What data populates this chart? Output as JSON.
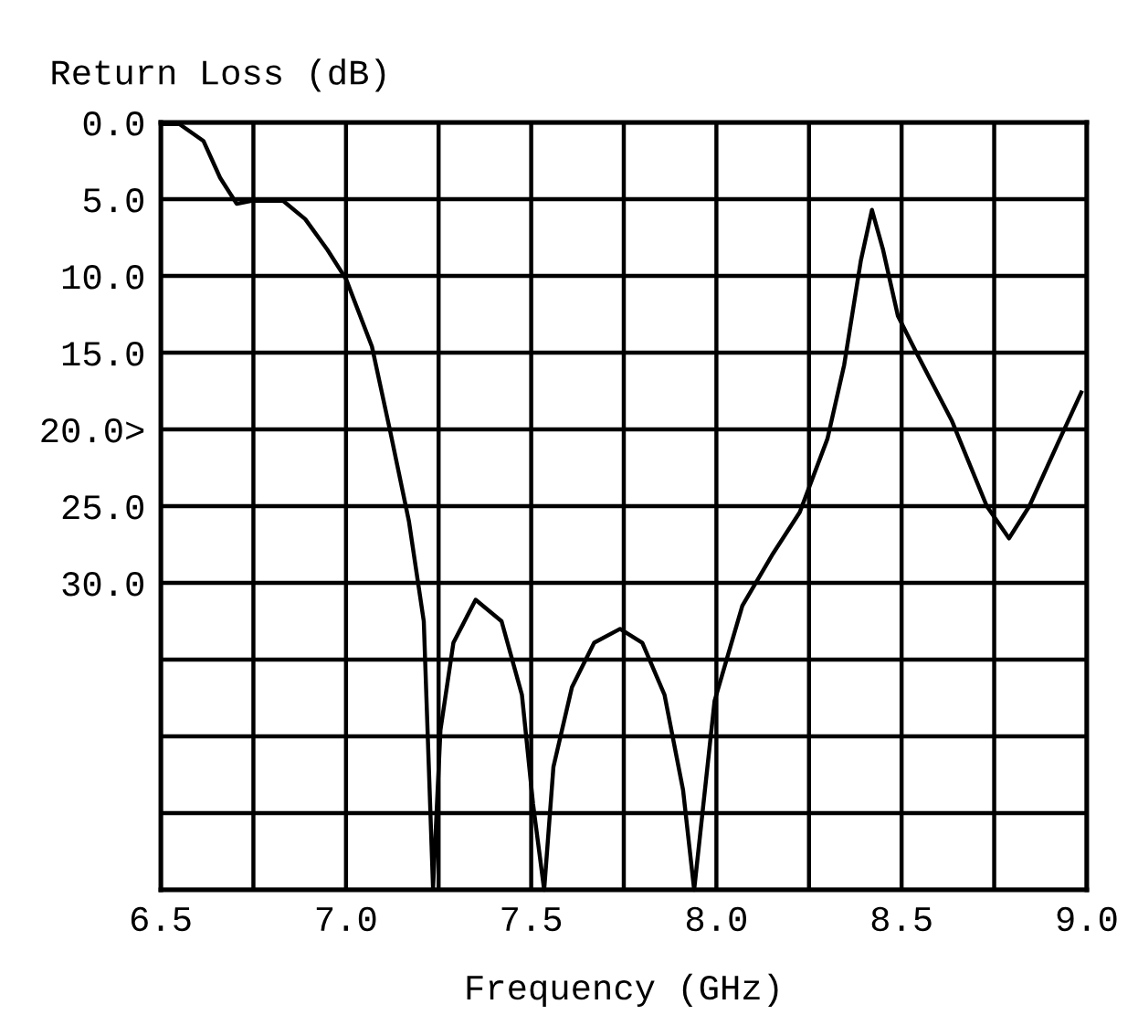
{
  "chart_data": {
    "type": "line",
    "xlabel": "Frequency (GHz)",
    "ylabel": "Return Loss (dB)",
    "x": [
      6.5,
      6.55,
      6.615,
      6.66,
      6.705,
      6.745,
      6.83,
      6.89,
      6.95,
      7.0,
      7.07,
      7.12,
      7.17,
      7.21,
      7.235,
      7.255,
      7.29,
      7.35,
      7.42,
      7.475,
      7.505,
      7.535,
      7.56,
      7.61,
      7.67,
      7.74,
      7.8,
      7.86,
      7.91,
      7.94,
      7.965,
      7.995,
      8.07,
      8.15,
      8.225,
      8.3,
      8.345,
      8.39,
      8.42,
      8.45,
      8.49,
      8.54,
      8.635,
      8.73,
      8.79,
      8.845,
      8.92,
      8.985
    ],
    "series": [
      {
        "color": "#000000",
        "values": [
          0.1,
          0.1,
          1.2,
          3.6,
          5.3,
          5.1,
          5.1,
          6.3,
          8.3,
          10.2,
          14.6,
          20.2,
          26,
          32.5,
          49.9,
          39.6,
          33.9,
          31.1,
          32.5,
          37.3,
          44.4,
          50,
          42,
          36.8,
          33.9,
          33.0,
          33.9,
          37.3,
          43.5,
          50,
          44.4,
          37.7,
          31.5,
          28.2,
          25.4,
          20.6,
          15.8,
          9.0,
          5.7,
          8.3,
          12.6,
          15.0,
          19.4,
          25.0,
          27.1,
          25.0,
          21.0,
          17.6
        ]
      }
    ],
    "xlim": [
      6.5,
      9.0
    ],
    "ylim": [
      50,
      0
    ],
    "xticks": [
      {
        "value": 6.5,
        "label": "6.5"
      },
      {
        "value": 6.75,
        "label": null
      },
      {
        "value": 7,
        "label": "7.0"
      },
      {
        "value": 7.25,
        "label": null
      },
      {
        "value": 7.5,
        "label": "7.5"
      },
      {
        "value": 7.75,
        "label": null
      },
      {
        "value": 8,
        "label": "8.0"
      },
      {
        "value": 8.25,
        "label": null
      },
      {
        "value": 8.5,
        "label": "8.5"
      },
      {
        "value": 8.75,
        "label": null
      },
      {
        "value": 9,
        "label": "9.0"
      }
    ],
    "yticks": [
      {
        "value": 0,
        "label": "0.0"
      },
      {
        "value": 5,
        "label": "5.0"
      },
      {
        "value": 10,
        "label": "10.0"
      },
      {
        "value": 15,
        "label": "15.0"
      },
      {
        "value": 20,
        "label": "20.0>"
      },
      {
        "value": 25,
        "label": "25.0"
      },
      {
        "value": 30,
        "label": "30.0"
      },
      {
        "value": 35,
        "label": null
      },
      {
        "value": 40,
        "label": null
      },
      {
        "value": 45,
        "label": null
      },
      {
        "value": 50,
        "label": null
      }
    ],
    "grid": true,
    "marker": "none",
    "line_style": "solid"
  }
}
